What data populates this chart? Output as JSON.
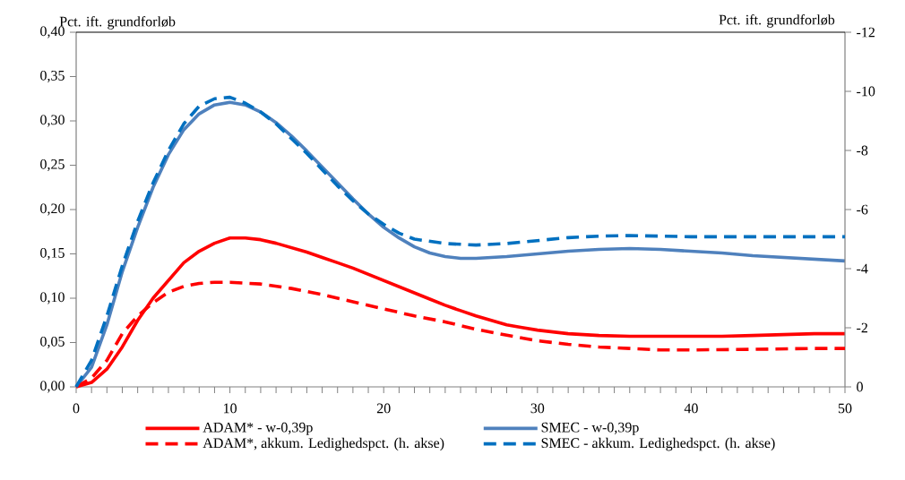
{
  "chart_data": {
    "type": "line",
    "ylabel": "Pct. ift. grundforløb",
    "y2label": "Pct. ift. grundforløb",
    "xlim": [
      0,
      50
    ],
    "xticks": [
      0,
      10,
      20,
      30,
      40,
      50
    ],
    "ylim": [
      0,
      0.4
    ],
    "yticks": [
      {
        "value": 0,
        "label": "0,00"
      },
      {
        "value": 0.05,
        "label": "0,05"
      },
      {
        "value": 0.1,
        "label": "0,10"
      },
      {
        "value": 0.15,
        "label": "0,15"
      },
      {
        "value": 0.2,
        "label": "0,20"
      },
      {
        "value": 0.25,
        "label": "0,25"
      },
      {
        "value": 0.3,
        "label": "0,30"
      },
      {
        "value": 0.35,
        "label": "0,35"
      },
      {
        "value": 0.4,
        "label": "0,40"
      }
    ],
    "y2lim": [
      0,
      -12
    ],
    "y2ticks": [
      0,
      -2,
      -4,
      -6,
      -8,
      -10,
      -12
    ],
    "legend": "bottom",
    "grid": false,
    "marker": "none",
    "series": [
      {
        "name": "ADAM* - w-0,39p",
        "color": "#ff0000",
        "line_style": "solid",
        "x": [
          0,
          1,
          2,
          3,
          4,
          5,
          6,
          7,
          8,
          9,
          10,
          11,
          12,
          13,
          14,
          15,
          16,
          17,
          18,
          19,
          20,
          21,
          22,
          23,
          24,
          25,
          26,
          27,
          28,
          29,
          30,
          32,
          34,
          36,
          38,
          40,
          42,
          44,
          46,
          48,
          50
        ],
        "values": [
          0,
          0.005,
          0.02,
          0.045,
          0.075,
          0.1,
          0.12,
          0.14,
          0.153,
          0.162,
          0.168,
          0.168,
          0.166,
          0.162,
          0.157,
          0.152,
          0.146,
          0.14,
          0.134,
          0.127,
          0.12,
          0.113,
          0.106,
          0.099,
          0.092,
          0.086,
          0.08,
          0.075,
          0.07,
          0.067,
          0.064,
          0.06,
          0.058,
          0.057,
          0.057,
          0.057,
          0.057,
          0.058,
          0.059,
          0.06,
          0.06
        ]
      },
      {
        "name": "SMEC - w-0,39p",
        "color": "#4f81bd",
        "line_style": "solid",
        "x": [
          0,
          1,
          2,
          3,
          4,
          5,
          6,
          7,
          8,
          9,
          10,
          11,
          12,
          13,
          14,
          15,
          16,
          17,
          18,
          19,
          20,
          21,
          22,
          23,
          24,
          25,
          26,
          28,
          30,
          32,
          34,
          36,
          38,
          40,
          42,
          44,
          46,
          48,
          50
        ],
        "values": [
          0,
          0.022,
          0.07,
          0.13,
          0.18,
          0.225,
          0.262,
          0.29,
          0.308,
          0.318,
          0.321,
          0.318,
          0.31,
          0.298,
          0.283,
          0.266,
          0.248,
          0.23,
          0.212,
          0.195,
          0.18,
          0.168,
          0.158,
          0.151,
          0.147,
          0.145,
          0.145,
          0.147,
          0.15,
          0.153,
          0.155,
          0.156,
          0.155,
          0.153,
          0.151,
          0.148,
          0.146,
          0.144,
          0.142
        ]
      },
      {
        "name": "ADAM*, akkum. Ledighedspct. (h. akse)",
        "color": "#ff0000",
        "line_style": "dashed",
        "axis": "y2",
        "x": [
          0,
          1,
          2,
          3,
          4,
          5,
          6,
          7,
          8,
          9,
          10,
          12,
          14,
          16,
          18,
          20,
          22,
          24,
          26,
          28,
          30,
          32,
          34,
          36,
          38,
          40,
          44,
          48,
          50
        ],
        "values": [
          0,
          -0.3,
          -0.9,
          -1.8,
          -2.4,
          -2.85,
          -3.2,
          -3.4,
          -3.5,
          -3.54,
          -3.54,
          -3.48,
          -3.33,
          -3.12,
          -2.88,
          -2.64,
          -2.4,
          -2.2,
          -1.95,
          -1.75,
          -1.56,
          -1.44,
          -1.35,
          -1.3,
          -1.25,
          -1.25,
          -1.27,
          -1.3,
          -1.3
        ]
      },
      {
        "name": "SMEC - akkum. Ledighedspct. (h. akse)",
        "color": "#0070c0",
        "line_style": "dashed",
        "axis": "y2",
        "x": [
          0,
          1,
          2,
          3,
          4,
          5,
          6,
          7,
          8,
          9,
          10,
          11,
          12,
          13,
          14,
          15,
          16,
          17,
          18,
          19,
          20,
          21,
          22,
          24,
          26,
          28,
          30,
          32,
          34,
          36,
          38,
          40,
          44,
          48,
          50
        ],
        "values": [
          0,
          -0.9,
          -2.4,
          -4.1,
          -5.6,
          -6.9,
          -8.0,
          -8.9,
          -9.5,
          -9.75,
          -9.8,
          -9.6,
          -9.3,
          -8.9,
          -8.4,
          -7.9,
          -7.35,
          -6.8,
          -6.3,
          -5.85,
          -5.5,
          -5.2,
          -5.0,
          -4.85,
          -4.8,
          -4.85,
          -4.95,
          -5.05,
          -5.1,
          -5.12,
          -5.1,
          -5.08,
          -5.08,
          -5.08,
          -5.08
        ]
      }
    ]
  }
}
